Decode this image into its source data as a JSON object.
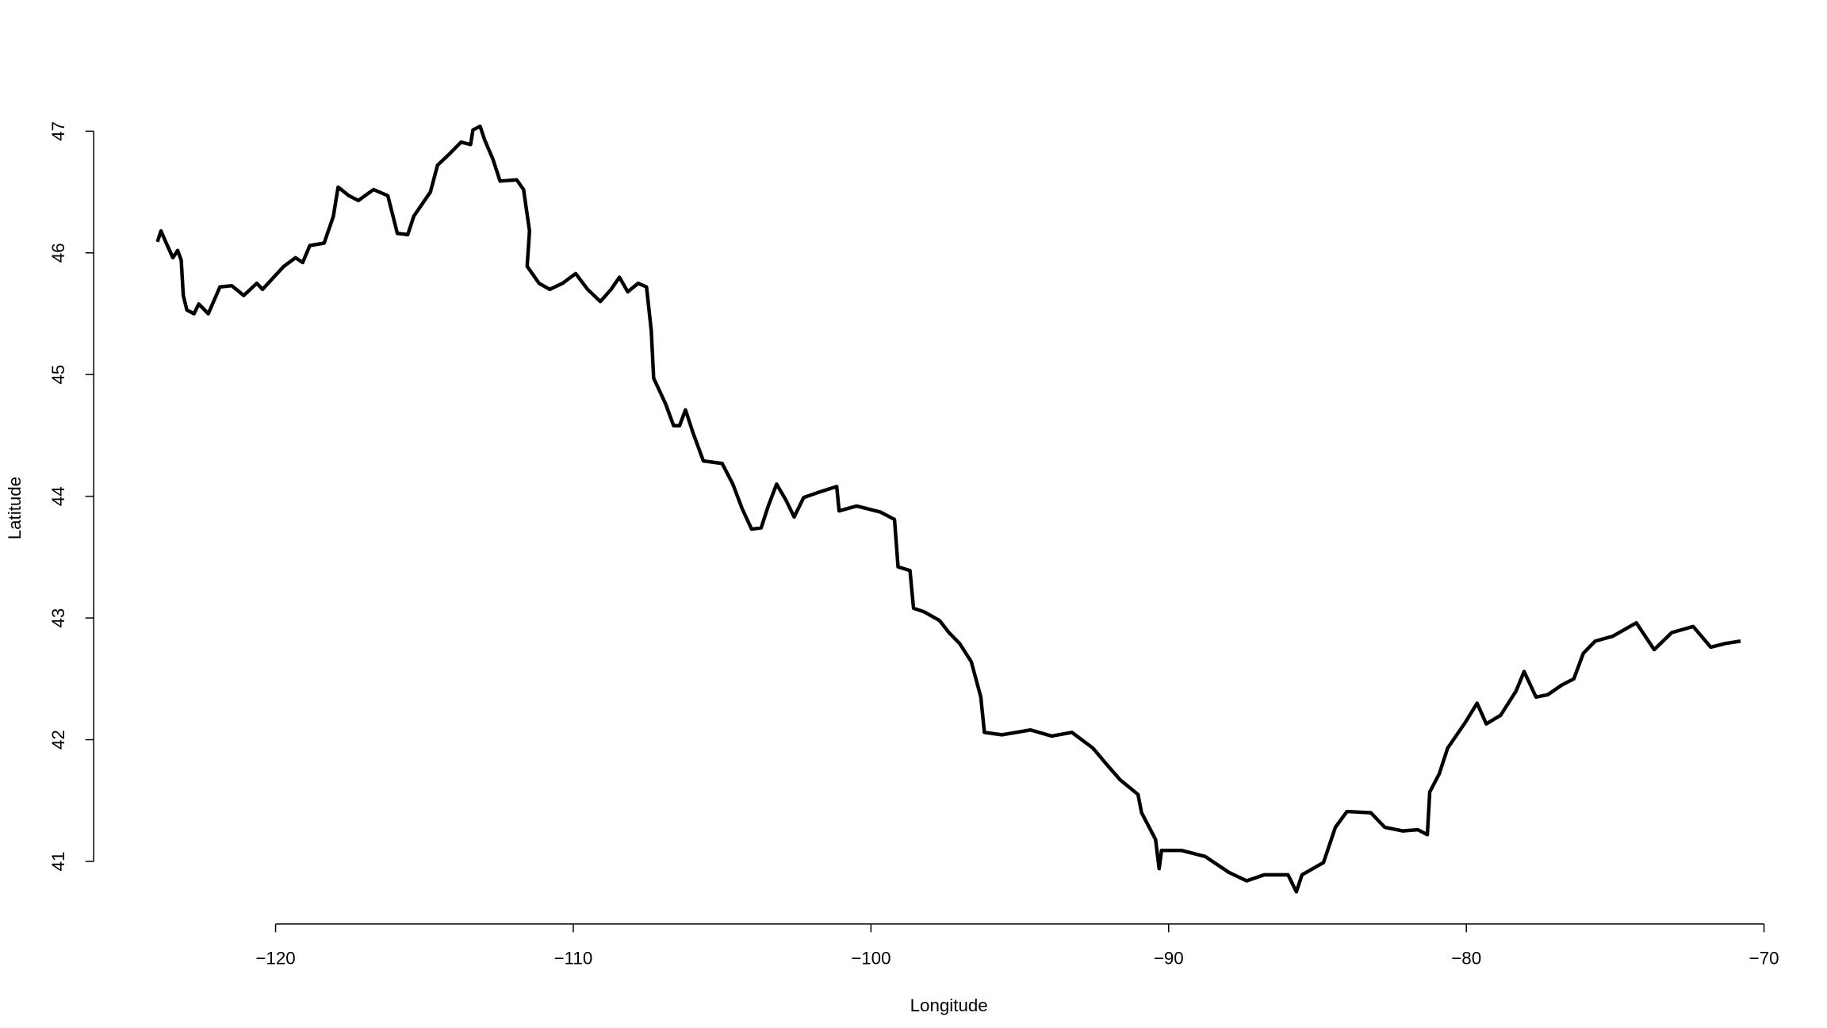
{
  "chart_data": {
    "type": "line",
    "x_label": "Longitude",
    "y_label": "Latitude",
    "xlim": [
      -126.3,
      -68.7
    ],
    "ylim": [
      40.5,
      47.3
    ],
    "xticks": [
      {
        "value": -120,
        "label": "−120"
      },
      {
        "value": -110,
        "label": "−110"
      },
      {
        "value": -100,
        "label": "−100"
      },
      {
        "value": -90,
        "label": "−90"
      },
      {
        "value": -80,
        "label": "−80"
      },
      {
        "value": -70,
        "label": "−70"
      }
    ],
    "yticks": [
      41,
      42,
      43,
      44,
      45,
      46,
      47
    ],
    "series": [
      {
        "color": "#000000",
        "x": [
          -123.97,
          -123.85,
          -123.69,
          -123.45,
          -123.29,
          -123.17,
          -123.1,
          -122.98,
          -122.74,
          -122.58,
          -122.26,
          -121.87,
          -121.47,
          -121.07,
          -120.63,
          -120.44,
          -119.72,
          -119.33,
          -119.09,
          -118.85,
          -118.37,
          -118.06,
          -117.9,
          -117.54,
          -117.22,
          -116.71,
          -116.23,
          -115.91,
          -115.56,
          -115.36,
          -114.8,
          -114.56,
          -114.13,
          -113.77,
          -113.45,
          -113.37,
          -113.13,
          -112.98,
          -112.7,
          -112.46,
          -111.9,
          -111.67,
          -111.47,
          -111.55,
          -111.15,
          -110.79,
          -110.36,
          -109.92,
          -109.52,
          -109.09,
          -108.73,
          -108.45,
          -108.17,
          -107.82,
          -107.54,
          -107.38,
          -107.3,
          -106.9,
          -106.63,
          -106.43,
          -106.23,
          -105.99,
          -105.63,
          -105.0,
          -104.64,
          -104.33,
          -104.01,
          -103.69,
          -103.45,
          -103.17,
          -102.86,
          -102.58,
          -102.26,
          -101.79,
          -101.15,
          -101.07,
          -100.48,
          -99.68,
          -99.21,
          -99.09,
          -98.69,
          -98.57,
          -98.21,
          -97.7,
          -97.38,
          -97.02,
          -96.63,
          -96.31,
          -96.19,
          -95.6,
          -94.64,
          -93.93,
          -93.25,
          -92.54,
          -92.06,
          -91.63,
          -91.03,
          -90.91,
          -90.44,
          -90.32,
          -90.24,
          -89.56,
          -88.77,
          -87.98,
          -87.38,
          -86.79,
          -85.99,
          -85.71,
          -85.52,
          -84.8,
          -84.4,
          -84.01,
          -83.21,
          -82.74,
          -82.14,
          -81.63,
          -81.31,
          -81.23,
          -80.91,
          -80.63,
          -80.04,
          -79.64,
          -79.33,
          -78.85,
          -78.33,
          -78.06,
          -77.66,
          -77.26,
          -76.79,
          -76.39,
          -76.07,
          -75.67,
          -75.08,
          -74.29,
          -73.69,
          -73.1,
          -72.38,
          -71.79,
          -71.31,
          -70.79
        ],
        "values": [
          46.09,
          46.18,
          46.09,
          45.96,
          46.02,
          45.94,
          45.65,
          45.53,
          45.5,
          45.58,
          45.5,
          45.72,
          45.73,
          45.65,
          45.75,
          45.7,
          45.89,
          45.96,
          45.92,
          46.06,
          46.08,
          46.3,
          46.54,
          46.47,
          46.43,
          46.52,
          46.47,
          46.16,
          46.15,
          46.3,
          46.5,
          46.72,
          46.82,
          46.91,
          46.89,
          47.01,
          47.04,
          46.93,
          46.77,
          46.59,
          46.6,
          46.52,
          46.18,
          45.89,
          45.75,
          45.7,
          45.75,
          45.83,
          45.7,
          45.6,
          45.7,
          45.8,
          45.68,
          45.75,
          45.72,
          45.36,
          44.97,
          44.76,
          44.58,
          44.58,
          44.71,
          44.53,
          44.29,
          44.27,
          44.1,
          43.9,
          43.73,
          43.74,
          43.92,
          44.1,
          43.97,
          43.83,
          43.99,
          44.03,
          44.08,
          43.88,
          43.92,
          43.87,
          43.81,
          43.42,
          43.39,
          43.08,
          43.05,
          42.98,
          42.88,
          42.79,
          42.64,
          42.35,
          42.06,
          42.04,
          42.08,
          42.03,
          42.06,
          41.93,
          41.79,
          41.67,
          41.55,
          41.4,
          41.18,
          40.94,
          41.09,
          41.09,
          41.04,
          40.91,
          40.84,
          40.89,
          40.89,
          40.75,
          40.89,
          40.99,
          41.28,
          41.41,
          41.4,
          41.28,
          41.25,
          41.26,
          41.22,
          41.57,
          41.72,
          41.93,
          42.14,
          42.3,
          42.13,
          42.2,
          42.4,
          42.56,
          42.35,
          42.37,
          42.45,
          42.5,
          42.71,
          42.81,
          42.85,
          42.96,
          42.74,
          42.88,
          42.93,
          42.76,
          42.79,
          42.81
        ]
      }
    ]
  }
}
